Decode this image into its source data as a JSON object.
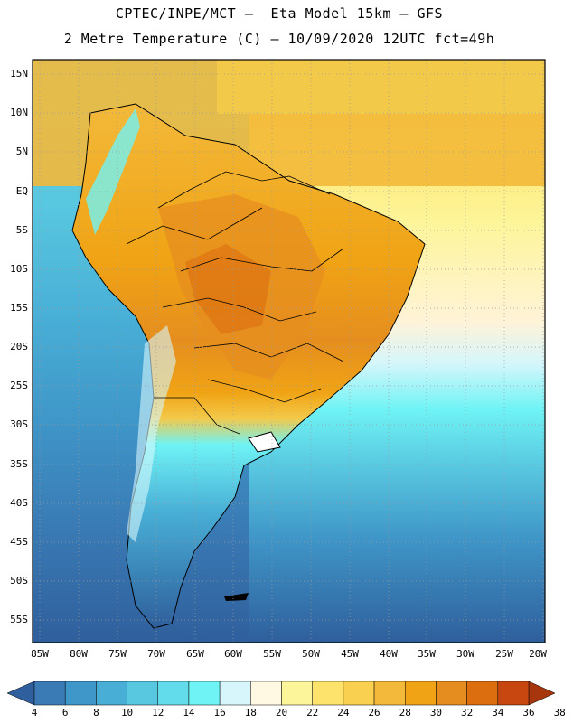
{
  "header": {
    "line1": "CPTEC/INPE/MCT –  Eta Model 15km – GFS",
    "line2": "2 Metre Temperature (C) – 10/09/2020 12UTC fct=49h"
  },
  "map": {
    "lat_labels": [
      "15N",
      "10N",
      "5N",
      "EQ",
      "5S",
      "10S",
      "15S",
      "20S",
      "25S",
      "30S",
      "35S",
      "40S",
      "45S",
      "50S",
      "55S"
    ],
    "lon_labels": [
      "85W",
      "80W",
      "75W",
      "70W",
      "65W",
      "60W",
      "55W",
      "50W",
      "45W",
      "40W",
      "35W",
      "30W",
      "25W",
      "20W"
    ]
  },
  "colorbar": {
    "labels": [
      "4",
      "6",
      "8",
      "10",
      "12",
      "14",
      "16",
      "18",
      "20",
      "22",
      "24",
      "26",
      "28",
      "30",
      "32",
      "34",
      "36",
      "38"
    ],
    "colors": [
      "#2f5f9c",
      "#3a7bb5",
      "#3f96c8",
      "#48aed6",
      "#58c7e0",
      "#62dbea",
      "#6ff3f5",
      "#d6f6fb",
      "#fff9e3",
      "#fdf59a",
      "#fde36c",
      "#f9d04f",
      "#f3b93a",
      "#f0a314",
      "#e58e1f",
      "#dc6e0f",
      "#c84711",
      "#a8360d"
    ]
  }
}
